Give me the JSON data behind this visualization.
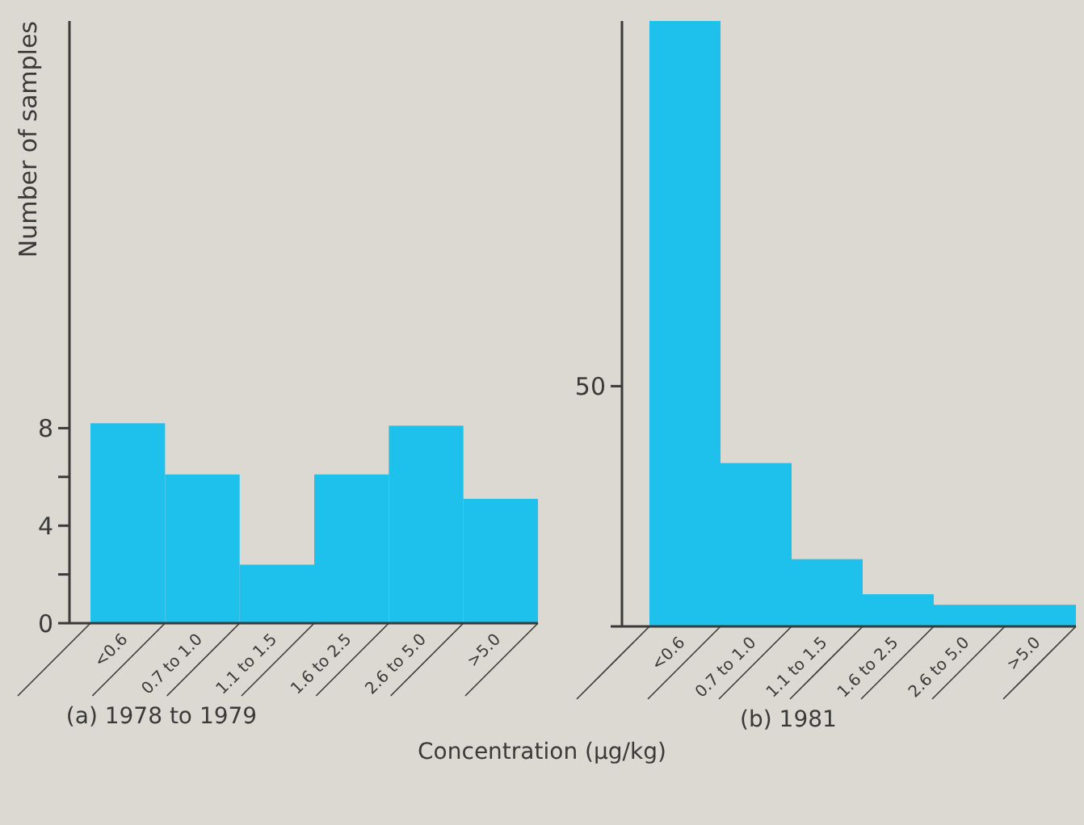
{
  "chart_data": [
    {
      "type": "bar",
      "title": "(a) 1978 to 1979",
      "ylabel": "Number of samples",
      "xlabel": "Concentration (μg/kg)",
      "categories": [
        "<0.6",
        "0.7 to 1.0",
        "1.1 to 1.5",
        "1.6 to 2.5",
        "2.6 to 5.0",
        ">5.0"
      ],
      "values": [
        8.2,
        6.1,
        2.4,
        6.1,
        8.1,
        5.1
      ],
      "color": "#1ec0ec",
      "ylim": [
        0,
        24.7
      ],
      "yticks": [
        0,
        {
          "value": 2,
          "label": null
        },
        4,
        {
          "value": 6,
          "label": null
        },
        8
      ],
      "grid": false
    },
    {
      "type": "bar",
      "title": "(b) 1981",
      "categories": [
        "<0.6",
        "0.7 to 1.0",
        "1.1 to 1.5",
        "1.6 to 2.5",
        "2.6 to 5.0",
        ">5.0"
      ],
      "values": [
        126,
        34,
        14,
        6.7,
        4.5,
        4.5
      ],
      "color": "#1ec0ec",
      "ylim": [
        0,
        126
      ],
      "yticks": [
        {
          "value": 0,
          "label": null
        },
        50
      ],
      "grid": false
    }
  ]
}
